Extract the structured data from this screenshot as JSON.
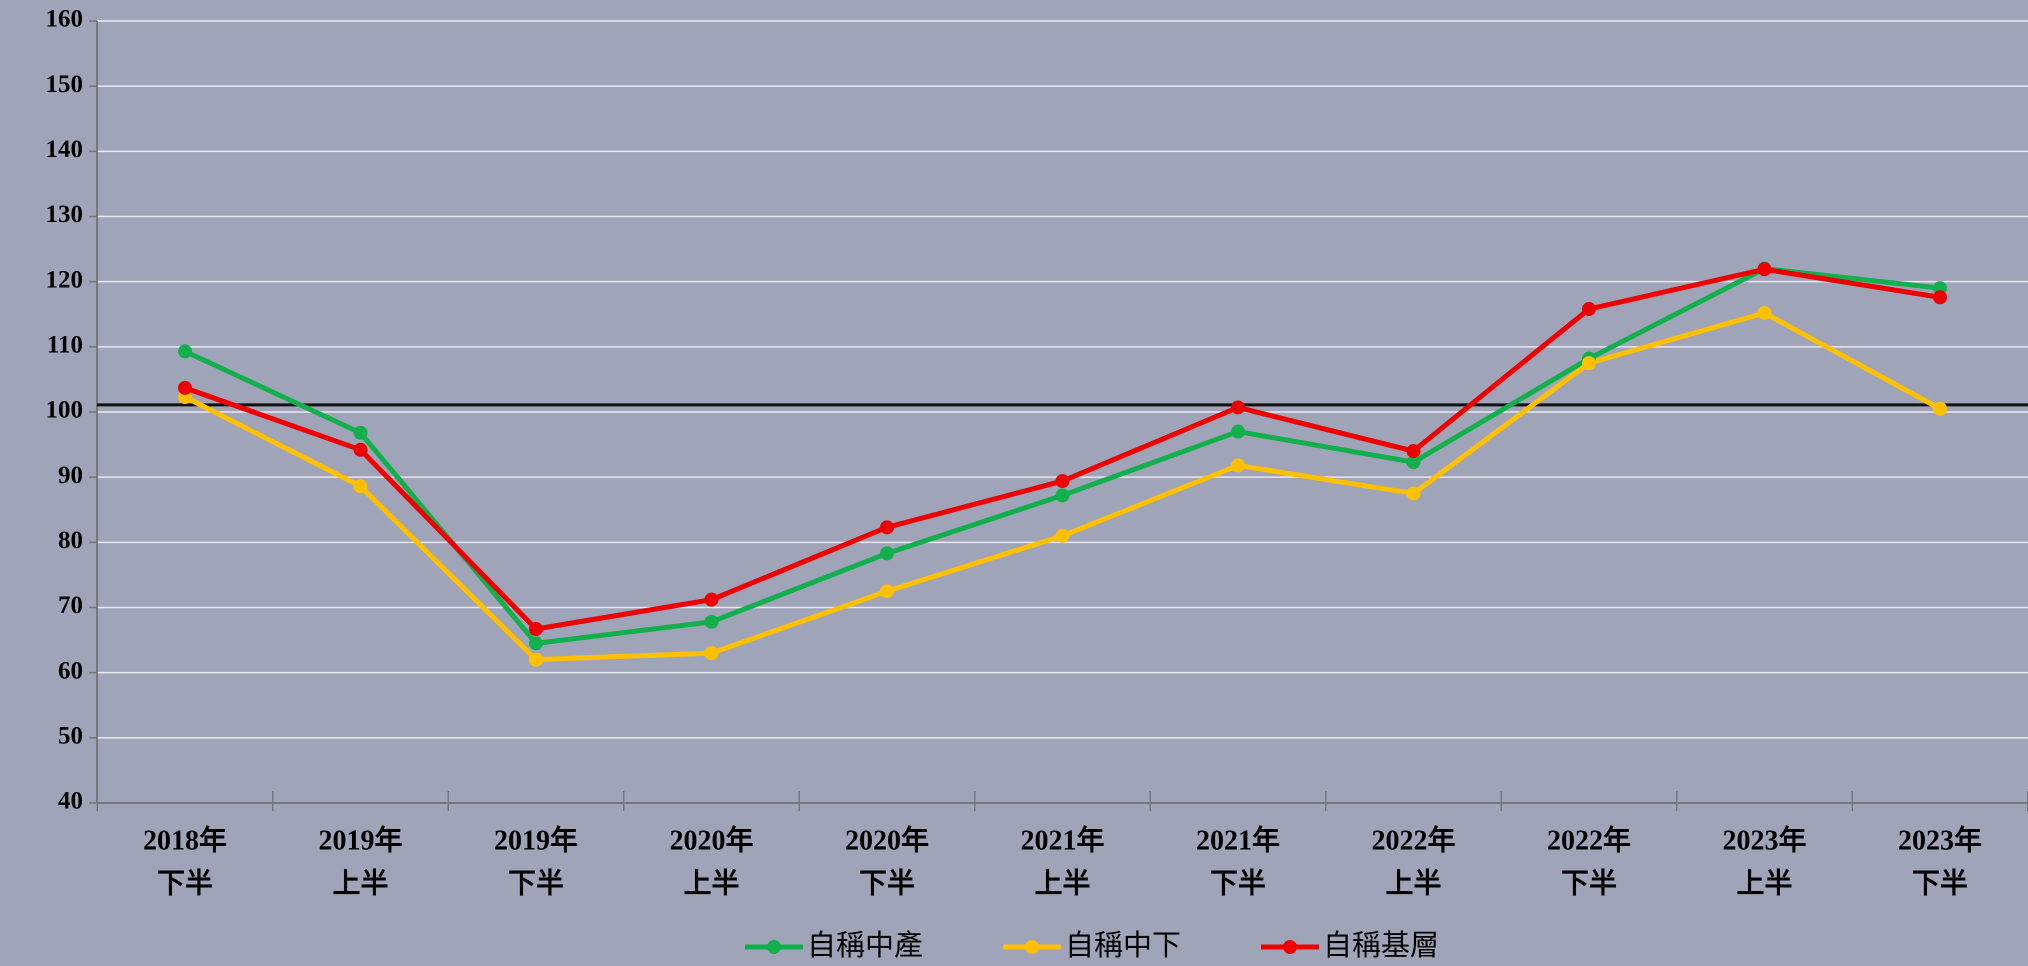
{
  "chart_data": {
    "type": "line",
    "categories": [
      [
        "2018年",
        "下半"
      ],
      [
        "2019年",
        "上半"
      ],
      [
        "2019年",
        "下半"
      ],
      [
        "2020年",
        "上半"
      ],
      [
        "2020年",
        "下半"
      ],
      [
        "2021年",
        "上半"
      ],
      [
        "2021年",
        "下半"
      ],
      [
        "2022年",
        "上半"
      ],
      [
        "2022年",
        "下半"
      ],
      [
        "2023年",
        "上半"
      ],
      [
        "2023年",
        "下半"
      ]
    ],
    "series": [
      {
        "name": "自稱中產",
        "color": "#12b04c",
        "values": [
          109.3,
          96.8,
          64.5,
          67.8,
          78.3,
          87.2,
          97.0,
          92.3,
          108.2,
          122.0,
          119.0
        ]
      },
      {
        "name": "自稱中下",
        "color": "#ffc000",
        "values": [
          102.3,
          88.6,
          62.0,
          63.0,
          72.5,
          81.0,
          91.8,
          87.5,
          107.5,
          115.2,
          100.5
        ]
      },
      {
        "name": "自稱基層",
        "color": "#ee0000",
        "values": [
          103.7,
          94.2,
          66.7,
          71.2,
          82.3,
          89.4,
          100.7,
          94.0,
          115.8,
          121.9,
          117.6
        ]
      }
    ],
    "reference_line": 101.1,
    "ylim": [
      40,
      160
    ],
    "yticks": [
      40,
      50,
      60,
      70,
      80,
      90,
      100,
      110,
      120,
      130,
      140,
      150,
      160
    ],
    "grid": true,
    "legend": "bottom"
  }
}
